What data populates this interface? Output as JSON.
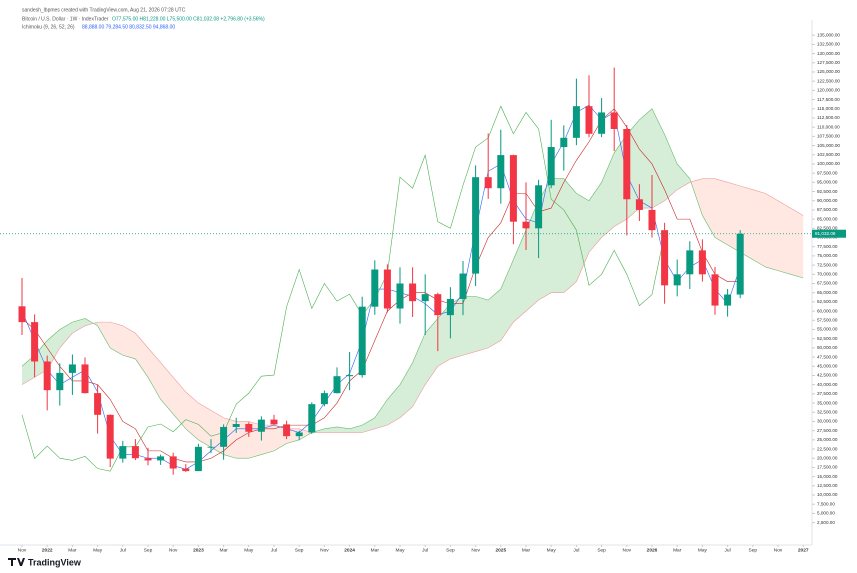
{
  "chart_data": {
    "type": "candlestick",
    "credit": "sandesh_lbpmes created with TradingView.com, Aug 21, 2026 07:28 UTC",
    "title": "Bitcoin / U.S. Dollar · 1W · IndexTrader",
    "ohlc_text": "O77,575.00 H81,228.00 L75,500.00 C81,032.08 +2,796.80 (+3.56%)",
    "indicator": "Ichimoku (9, 26, 52, 26)",
    "indicator_text": "88,888.00  79,284.50  80,832.50  94,868.00",
    "brand": "TradingView",
    "x": [
      "2021-11",
      "2021-12",
      "2022-01",
      "2022-02",
      "2022-03",
      "2022-04",
      "2022-05",
      "2022-06",
      "2022-07",
      "2022-08",
      "2022-09",
      "2022-10",
      "2022-11",
      "2022-12",
      "2023-01",
      "2023-02",
      "2023-03",
      "2023-04",
      "2023-05",
      "2023-06",
      "2023-07",
      "2023-08",
      "2023-09",
      "2023-10",
      "2023-11",
      "2023-12",
      "2024-01",
      "2024-02",
      "2024-03",
      "2024-04",
      "2024-05",
      "2024-06",
      "2024-07",
      "2024-08",
      "2024-09",
      "2024-10",
      "2024-11",
      "2024-12",
      "2025-01",
      "2025-02",
      "2025-03",
      "2025-04",
      "2025-05",
      "2025-06",
      "2025-07",
      "2025-08",
      "2025-09",
      "2025-10",
      "2025-11",
      "2025-12",
      "2026-01",
      "2026-02",
      "2026-03",
      "2026-04",
      "2026-05",
      "2026-06",
      "2026-07",
      "2026-08",
      "2026-09",
      "2026-10",
      "2026-11",
      "2026-12",
      "2027-01"
    ],
    "xticks": [
      {
        "value": "2021-11",
        "label": "Nov"
      },
      {
        "value": "2022-01",
        "label": "2022"
      },
      {
        "value": "2022-03",
        "label": "Mar"
      },
      {
        "value": "2022-05",
        "label": "May"
      },
      {
        "value": "2022-07",
        "label": "Jul"
      },
      {
        "value": "2022-09",
        "label": "Sep"
      },
      {
        "value": "2022-11",
        "label": "Nov"
      },
      {
        "value": "2023-01",
        "label": "2023"
      },
      {
        "value": "2023-03",
        "label": "Mar"
      },
      {
        "value": "2023-05",
        "label": "May"
      },
      {
        "value": "2023-07",
        "label": "Jul"
      },
      {
        "value": "2023-09",
        "label": "Sep"
      },
      {
        "value": "2023-11",
        "label": "Nov"
      },
      {
        "value": "2024-01",
        "label": "2024"
      },
      {
        "value": "2024-03",
        "label": "Mar"
      },
      {
        "value": "2024-05",
        "label": "May"
      },
      {
        "value": "2024-07",
        "label": "Jul"
      },
      {
        "value": "2024-09",
        "label": "Sep"
      },
      {
        "value": "2024-11",
        "label": "Nov"
      },
      {
        "value": "2025-01",
        "label": "2025"
      },
      {
        "value": "2025-03",
        "label": "Mar"
      },
      {
        "value": "2025-05",
        "label": "May"
      },
      {
        "value": "2025-07",
        "label": "Jul"
      },
      {
        "value": "2025-09",
        "label": "Sep"
      },
      {
        "value": "2025-11",
        "label": "Nov"
      },
      {
        "value": "2026-01",
        "label": "2026"
      },
      {
        "value": "2026-03",
        "label": "Mar"
      },
      {
        "value": "2026-05",
        "label": "May"
      },
      {
        "value": "2026-07",
        "label": "Jul"
      },
      {
        "value": "2026-09",
        "label": "Sep"
      },
      {
        "value": "2026-11",
        "label": "Nov"
      },
      {
        "value": "2027-01",
        "label": "2027"
      }
    ],
    "candles": {
      "up_color": "#089981",
      "down_color": "#f23645",
      "open": [
        61300,
        57000,
        46300,
        38500,
        43200,
        45500,
        37700,
        31800,
        19900,
        23300,
        20000,
        19400,
        20500,
        17200,
        16500,
        23100,
        23100,
        28500,
        29300,
        27200,
        30500,
        29200,
        26000,
        27000,
        34700,
        37700,
        42300,
        42600,
        61200,
        71300,
        60700,
        67500,
        62700,
        64600,
        58900,
        63300,
        70200,
        96400,
        93400,
        102400,
        84300,
        82500,
        94200,
        104600,
        107100,
        115700,
        108200,
        114000,
        109500,
        90400,
        87500,
        82000,
        67000,
        70000,
        76500,
        70000,
        61500,
        64500,
        null,
        null,
        null,
        null,
        null
      ],
      "high": [
        69000,
        59100,
        47900,
        45800,
        48200,
        47400,
        40000,
        31900,
        24700,
        25200,
        22800,
        21000,
        21500,
        18400,
        23900,
        25200,
        29200,
        31000,
        29800,
        31400,
        31800,
        30200,
        27500,
        35200,
        38400,
        44700,
        48900,
        63900,
        73800,
        72700,
        71900,
        71900,
        70000,
        65000,
        66500,
        73600,
        99600,
        108300,
        109300,
        102500,
        95000,
        95700,
        112000,
        110500,
        123200,
        124100,
        117900,
        126200,
        110600,
        94500,
        97000,
        84000,
        74000,
        79000,
        79500,
        72000,
        66000,
        82000,
        null,
        null,
        null,
        null,
        null
      ],
      "low": [
        53500,
        42000,
        33000,
        34300,
        37200,
        37600,
        26700,
        17600,
        18800,
        19500,
        18100,
        18200,
        15500,
        16300,
        16500,
        21400,
        19600,
        26900,
        25800,
        24800,
        28900,
        25200,
        24900,
        26600,
        34100,
        37600,
        38500,
        41900,
        59000,
        59600,
        56600,
        58400,
        53500,
        49100,
        52600,
        58900,
        66800,
        90500,
        89200,
        78200,
        76600,
        74400,
        93400,
        98200,
        105100,
        107300,
        107300,
        103500,
        80600,
        84500,
        80000,
        62000,
        64000,
        66000,
        68000,
        59000,
        58500,
        63500,
        null,
        null,
        null,
        null,
        null
      ],
      "close": [
        57000,
        46300,
        38500,
        43200,
        45500,
        37700,
        31800,
        19900,
        23300,
        20000,
        19400,
        20500,
        17200,
        16500,
        23100,
        23100,
        28500,
        29300,
        27200,
        30500,
        29200,
        26000,
        27000,
        34700,
        37700,
        42300,
        42600,
        61200,
        71300,
        60700,
        67500,
        62700,
        64600,
        58900,
        63300,
        70200,
        96400,
        93400,
        102400,
        84300,
        82500,
        94200,
        104600,
        107100,
        115700,
        108200,
        114000,
        109500,
        90400,
        87500,
        82000,
        67000,
        70000,
        76500,
        70000,
        61500,
        64500,
        81032.08,
        null,
        null,
        null,
        null,
        null
      ]
    },
    "lines": [
      {
        "color": "#2962ff",
        "values": [
          60000,
          52000,
          44000,
          40000,
          42000,
          44000,
          38000,
          26000,
          21000,
          21000,
          20000,
          20000,
          18000,
          17000,
          19000,
          22000,
          25000,
          28000,
          28000,
          28000,
          29000,
          28000,
          27000,
          30000,
          35000,
          40000,
          43000,
          52000,
          66000,
          66000,
          65000,
          64000,
          62000,
          59000,
          60000,
          65000,
          82000,
          98000,
          100000,
          90000,
          85000,
          84000,
          100000,
          106000,
          114000,
          116000,
          112000,
          114000,
          97000,
          90000,
          88000,
          74000,
          68000,
          72000,
          74000,
          66000,
          62000,
          72000,
          null,
          null,
          null,
          null,
          null
        ]
      },
      {
        "color": "#c62828",
        "values": [
          58000,
          55000,
          50000,
          45000,
          41000,
          41000,
          40000,
          36000,
          30000,
          28000,
          22000,
          22000,
          20000,
          19000,
          19000,
          20000,
          22000,
          25000,
          27000,
          28000,
          28000,
          29000,
          29000,
          29000,
          31000,
          35000,
          41000,
          44000,
          52000,
          60000,
          63000,
          65000,
          65000,
          63000,
          62000,
          62000,
          72000,
          80000,
          84000,
          92000,
          92000,
          87000,
          88000,
          95000,
          101000,
          106000,
          112000,
          115000,
          110000,
          104000,
          100000,
          93000,
          85000,
          85000,
          76000,
          70000,
          68000,
          68000,
          null,
          null,
          null,
          null,
          null
        ]
      },
      {
        "color": "#4caf50",
        "values": [
          31800,
          19900,
          23300,
          20000,
          19400,
          20500,
          17200,
          16500,
          23100,
          23100,
          28500,
          29300,
          27200,
          30500,
          29200,
          26000,
          27000,
          34700,
          37700,
          42300,
          42600,
          61200,
          71300,
          60700,
          67500,
          62700,
          64600,
          58900,
          63300,
          70200,
          96400,
          93400,
          102400,
          84300,
          82500,
          94200,
          104600,
          107100,
          115700,
          108200,
          114000,
          109500,
          90400,
          87500,
          82000,
          67000,
          70000,
          76500,
          70000,
          61500,
          64500,
          81032.08,
          null,
          null,
          null,
          null,
          null,
          null,
          null,
          null,
          null,
          null,
          null
        ]
      }
    ],
    "cloud": {
      "up_color": "#a5d6a7",
      "down_color": "#ffccbc",
      "span_a": {
        "color": "#66bb6a",
        "values": [
          45000,
          48000,
          52000,
          55000,
          57000,
          58000,
          56000,
          50000,
          48000,
          47000,
          42000,
          36000,
          32000,
          28000,
          25000,
          23000,
          21000,
          20000,
          20000,
          21000,
          22000,
          24000,
          25000,
          27000,
          28000,
          28500,
          28000,
          29000,
          31000,
          36000,
          40000,
          46000,
          54000,
          58000,
          62000,
          64000,
          64000,
          63000,
          66000,
          74000,
          82000,
          90000,
          96000,
          96000,
          92000,
          90000,
          95000,
          103000,
          108000,
          112000,
          115000,
          108000,
          100000,
          96000,
          86000,
          80000,
          78000,
          76000,
          74000,
          72000,
          71000,
          70000,
          69000
        ]
      },
      "span_b": {
        "color": "#ef9a9a",
        "values": [
          40000,
          42000,
          44000,
          50000,
          54000,
          56000,
          57000,
          57000,
          56000,
          54000,
          50000,
          46000,
          42000,
          38000,
          35000,
          33000,
          31000,
          30000,
          30000,
          29000,
          29000,
          28000,
          28000,
          27000,
          27000,
          27000,
          27000,
          27000,
          28000,
          29000,
          31000,
          34000,
          40000,
          45000,
          47000,
          48000,
          49000,
          50000,
          52000,
          57000,
          60000,
          63000,
          65000,
          65000,
          68000,
          76000,
          80000,
          83000,
          85000,
          88000,
          88000,
          90000,
          93000,
          95000,
          96000,
          96000,
          95000,
          94000,
          93000,
          92000,
          90000,
          88000,
          86000
        ]
      }
    },
    "last_price": {
      "value": 81032.08,
      "label": "81,032.08",
      "color": "#089981"
    },
    "ylim": [
      -2500,
      137500
    ],
    "yticks": [
      {
        "value": 2500,
        "label": "2,500.00"
      },
      {
        "value": 5000,
        "label": "5,000.00"
      },
      {
        "value": 7500,
        "label": "7,500.00"
      },
      {
        "value": 10000,
        "label": "10,000.00"
      },
      {
        "value": 12500,
        "label": "12,500.00"
      },
      {
        "value": 15000,
        "label": "15,000.00"
      },
      {
        "value": 17500,
        "label": "17,500.00"
      },
      {
        "value": 20000,
        "label": "20,000.00"
      },
      {
        "value": 22500,
        "label": "22,500.00"
      },
      {
        "value": 25000,
        "label": "25,000.00"
      },
      {
        "value": 27500,
        "label": "27,500.00"
      },
      {
        "value": 30000,
        "label": "30,000.00"
      },
      {
        "value": 32500,
        "label": "32,500.00"
      },
      {
        "value": 35000,
        "label": "35,000.00"
      },
      {
        "value": 37500,
        "label": "37,500.00"
      },
      {
        "value": 40000,
        "label": "40,000.00"
      },
      {
        "value": 42500,
        "label": "42,500.00"
      },
      {
        "value": 45000,
        "label": "45,000.00"
      },
      {
        "value": 47500,
        "label": "47,500.00"
      },
      {
        "value": 50000,
        "label": "50,000.00"
      },
      {
        "value": 52500,
        "label": "52,500.00"
      },
      {
        "value": 55000,
        "label": "55,000.00"
      },
      {
        "value": 57500,
        "label": "57,500.00"
      },
      {
        "value": 60000,
        "label": "60,000.00"
      },
      {
        "value": 62500,
        "label": "62,500.00"
      },
      {
        "value": 65000,
        "label": "65,000.00"
      },
      {
        "value": 67500,
        "label": "67,500.00"
      },
      {
        "value": 70000,
        "label": "70,000.00"
      },
      {
        "value": 72500,
        "label": "72,500.00"
      },
      {
        "value": 75000,
        "label": "75,000.00"
      },
      {
        "value": 77500,
        "label": "77,500.00"
      },
      {
        "value": 80000,
        "label": "80,000.00"
      },
      {
        "value": 82500,
        "label": "82,500.00"
      },
      {
        "value": 85000,
        "label": "85,000.00"
      },
      {
        "value": 87500,
        "label": "87,500.00"
      },
      {
        "value": 90000,
        "label": "90,000.00"
      },
      {
        "value": 92500,
        "label": "92,500.00"
      },
      {
        "value": 95000,
        "label": "95,000.00"
      },
      {
        "value": 97500,
        "label": "97,500.00"
      },
      {
        "value": 100000,
        "label": "100,000.00"
      },
      {
        "value": 102500,
        "label": "102,500.00"
      },
      {
        "value": 105000,
        "label": "105,000.00"
      },
      {
        "value": 107500,
        "label": "107,500.00"
      },
      {
        "value": 110000,
        "label": "110,000.00"
      },
      {
        "value": 112500,
        "label": "112,500.00"
      },
      {
        "value": 115000,
        "label": "115,000.00"
      },
      {
        "value": 117500,
        "label": "117,500.00"
      },
      {
        "value": 120000,
        "label": "120,000.00"
      },
      {
        "value": 122500,
        "label": "122,500.00"
      },
      {
        "value": 125000,
        "label": "125,000.00"
      },
      {
        "value": 127500,
        "label": "127,500.00"
      },
      {
        "value": 130000,
        "label": "130,000.00"
      },
      {
        "value": 132500,
        "label": "132,500.00"
      },
      {
        "value": 135000,
        "label": "135,000.00"
      }
    ],
    "grid": false
  }
}
